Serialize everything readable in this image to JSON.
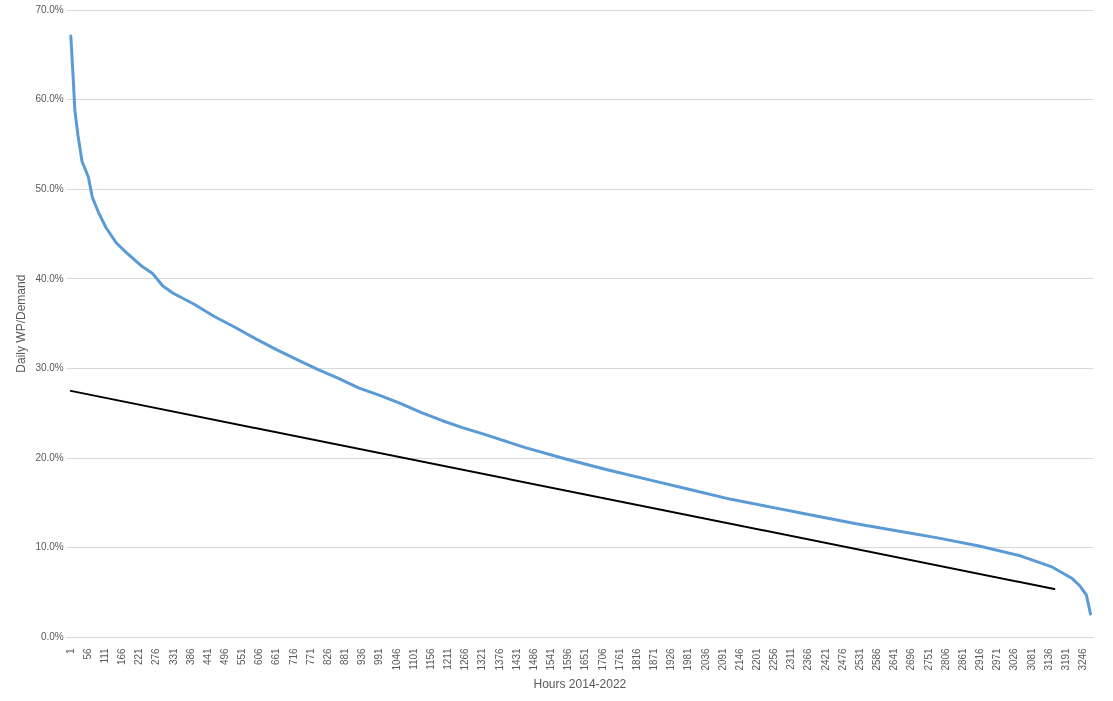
{
  "chart_data": {
    "type": "line",
    "xlabel": "Hours 2014-2022",
    "ylabel": "Daily WP/Demand",
    "xlim": [
      -12,
      3277
    ],
    "xticks": [
      1,
      56,
      111,
      166,
      221,
      276,
      331,
      386,
      441,
      496,
      551,
      606,
      661,
      716,
      771,
      826,
      881,
      936,
      991,
      1046,
      1101,
      1156,
      1211,
      1266,
      1321,
      1376,
      1431,
      1486,
      1541,
      1596,
      1651,
      1706,
      1761,
      1816,
      1871,
      1926,
      1981,
      2036,
      2091,
      2146,
      2201,
      2256,
      2311,
      2366,
      2421,
      2476,
      2531,
      2586,
      2641,
      2696,
      2751,
      2806,
      2861,
      2916,
      2971,
      3026,
      3081,
      3136,
      3191,
      3246
    ],
    "ylim": [
      0,
      70
    ],
    "yticks": [
      {
        "value": 0,
        "label": "0.0%"
      },
      {
        "value": 10,
        "label": "10.0%"
      },
      {
        "value": 20,
        "label": "20.0%"
      },
      {
        "value": 30,
        "label": "30.0%"
      },
      {
        "value": 40,
        "label": "40.0%"
      },
      {
        "value": 50,
        "label": "50.0%"
      },
      {
        "value": 60,
        "label": "60.0%"
      },
      {
        "value": 70,
        "label": "70.0%"
      }
    ],
    "grid": "y",
    "marker": "none",
    "line_style": "solid",
    "series": [
      {
        "color": "#5b9bd5",
        "x": [
          1,
          8,
          14,
          24,
          37,
          57,
          70,
          90,
          114,
          147,
          180,
          229,
          263,
          296,
          329,
          395,
          461,
          527,
          594,
          660,
          726,
          792,
          859,
          925,
          991,
          1057,
          1123,
          1190,
          1256,
          1322,
          1455,
          1587,
          1720,
          1852,
          1985,
          2117,
          2249,
          2382,
          2514,
          2647,
          2779,
          2912,
          3044,
          3143,
          3209,
          3236,
          3256,
          3269
        ],
        "values": [
          67.1,
          62.8,
          58.8,
          56,
          53.1,
          51.4,
          49.1,
          47.4,
          45.7,
          44,
          42.9,
          41.4,
          40.6,
          39.2,
          38.4,
          37.2,
          35.8,
          34.6,
          33.3,
          32.1,
          31,
          29.9,
          28.9,
          27.8,
          27,
          26.1,
          25.1,
          24.2,
          23.4,
          22.7,
          21.2,
          19.9,
          18.7,
          17.6,
          16.5,
          15.4,
          14.5,
          13.6,
          12.7,
          11.9,
          11.1,
          10.2,
          9.1,
          7.9,
          6.6,
          5.7,
          4.7,
          2.6
        ]
      },
      {
        "color": "#000000",
        "x": [
          1,
          3153
        ],
        "values": [
          27.5,
          5.4
        ]
      }
    ]
  }
}
